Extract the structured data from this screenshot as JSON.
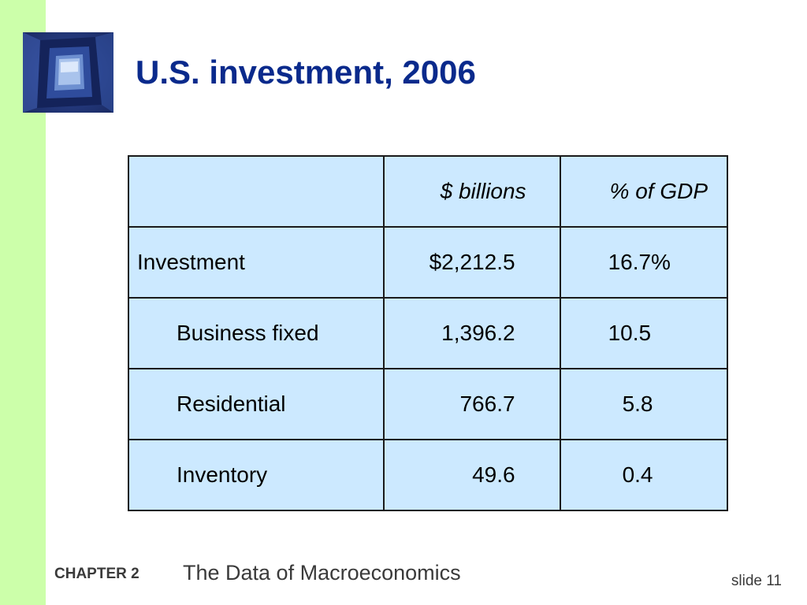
{
  "slide": {
    "title": "U.S. investment, 2006",
    "footer": {
      "chapter": "CHAPTER 2",
      "subject": "The Data of Macroeconomics",
      "slide_label": "slide 11"
    },
    "colors": {
      "title": "#0a2a8c",
      "left_band": "#ccffaa",
      "table_fill": "#cce9ff"
    }
  },
  "table": {
    "headers": [
      "",
      "$ billions",
      "% of GDP"
    ],
    "rows": [
      {
        "label": "Investment",
        "billions": "$2,212.5",
        "pct_gdp": "16.7%"
      },
      {
        "label": "Business fixed",
        "billions": "1,396.2",
        "pct_gdp": "10.5"
      },
      {
        "label": "Residential",
        "billions": "766.7",
        "pct_gdp": "5.8"
      },
      {
        "label": "Inventory",
        "billions": "49.6",
        "pct_gdp": "0.4"
      }
    ]
  }
}
